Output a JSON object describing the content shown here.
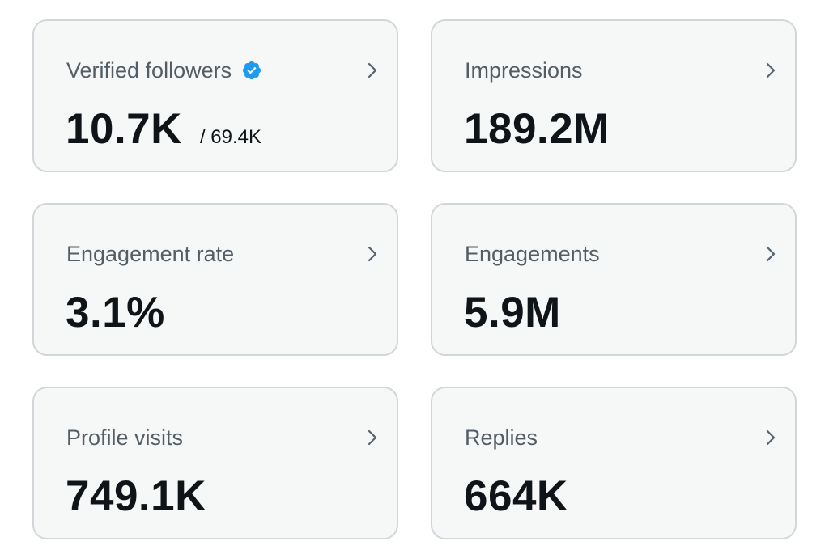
{
  "cards": [
    {
      "title": "Verified followers",
      "value": "10.7K",
      "sub": "/ 69.4K",
      "icon": "verified-badge-icon",
      "icon_color": "#1d9bf0"
    },
    {
      "title": "Impressions",
      "value": "189.2M"
    },
    {
      "title": "Engagement rate",
      "value": "3.1%"
    },
    {
      "title": "Engagements",
      "value": "5.9M"
    },
    {
      "title": "Profile visits",
      "value": "749.1K"
    },
    {
      "title": "Replies",
      "value": "664K"
    }
  ],
  "colors": {
    "card_bg": "#f6f7f7",
    "card_border": "#d0d6d9",
    "title": "#525e66",
    "value": "#0f1419",
    "chevron": "#536471"
  }
}
